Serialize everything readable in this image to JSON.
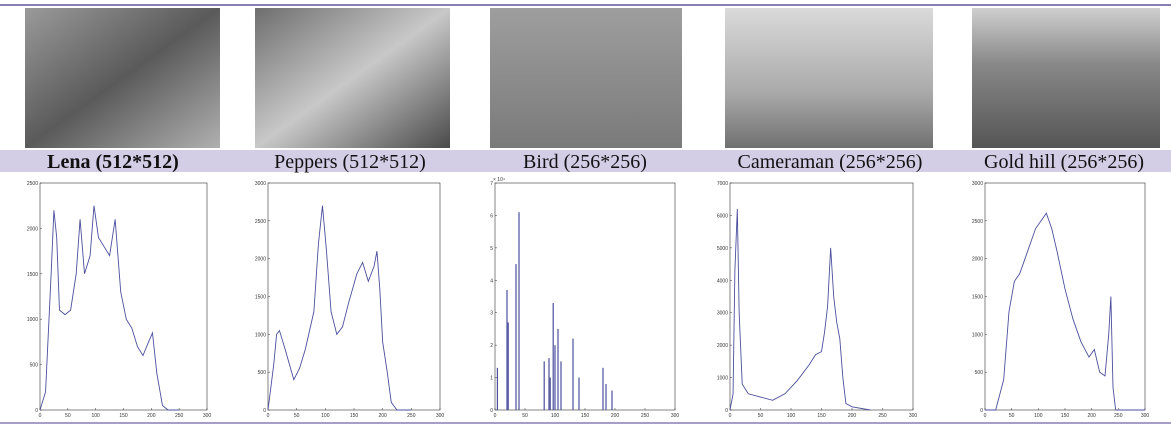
{
  "captions": [
    "Lena (512*512)",
    "Peppers (512*512)",
    "Bird (256*256)",
    "Cameraman (256*256)",
    "Gold hill (256*256)"
  ],
  "chart_data": [
    {
      "type": "line",
      "color": "#4b4f9c",
      "x": [
        0,
        10,
        20,
        25,
        30,
        35,
        45,
        55,
        65,
        72,
        80,
        90,
        97,
        105,
        115,
        125,
        135,
        145,
        155,
        165,
        175,
        185,
        195,
        202,
        210,
        220,
        230,
        250
      ],
      "values": [
        0,
        200,
        1500,
        2200,
        1900,
        1100,
        1050,
        1100,
        1500,
        2100,
        1500,
        1700,
        2250,
        1900,
        1800,
        1700,
        2100,
        1300,
        1000,
        900,
        700,
        600,
        750,
        850,
        400,
        50,
        0,
        0
      ],
      "xlim": [
        0,
        300
      ],
      "ylim": [
        0,
        2500
      ],
      "xticks": [
        0,
        50,
        100,
        150,
        200,
        250,
        300
      ],
      "yticks": [
        0,
        500,
        1000,
        1500,
        2000,
        2500
      ]
    },
    {
      "type": "line",
      "color": "#4b4f9c",
      "x": [
        0,
        10,
        15,
        20,
        30,
        45,
        55,
        65,
        80,
        88,
        95,
        102,
        110,
        120,
        130,
        140,
        155,
        165,
        175,
        185,
        190,
        195,
        200,
        208,
        215,
        225,
        250
      ],
      "values": [
        0,
        600,
        1000,
        1050,
        800,
        400,
        550,
        800,
        1300,
        2200,
        2700,
        2100,
        1300,
        1000,
        1100,
        1400,
        1800,
        1950,
        1700,
        1900,
        2100,
        1600,
        900,
        500,
        100,
        0,
        0
      ],
      "xlim": [
        0,
        300
      ],
      "ylim": [
        0,
        3000
      ],
      "xticks": [
        0,
        50,
        100,
        150,
        200,
        250,
        300
      ],
      "yticks": [
        0,
        500,
        1000,
        1500,
        2000,
        2500,
        3000
      ]
    },
    {
      "type": "bar",
      "color": "#4b4f9c",
      "annotation": "× 10⁴",
      "x": [
        4,
        20,
        22,
        35,
        40,
        82,
        90,
        92,
        97,
        100,
        105,
        110,
        130,
        140,
        180,
        185,
        195
      ],
      "values": [
        13000,
        37000,
        27000,
        45000,
        61000,
        15000,
        16000,
        10000,
        33000,
        20000,
        25000,
        15000,
        22000,
        10000,
        13000,
        8000,
        6000
      ],
      "xlim": [
        0,
        300
      ],
      "ylim": [
        0,
        70000
      ],
      "xticks": [
        0,
        50,
        100,
        150,
        200,
        250,
        300
      ],
      "yticks": [
        0,
        {
          "value": 10000,
          "label": "1"
        },
        {
          "value": 20000,
          "label": "2"
        },
        {
          "value": 30000,
          "label": "3"
        },
        {
          "value": 40000,
          "label": "4"
        },
        {
          "value": 50000,
          "label": "5"
        },
        {
          "value": 60000,
          "label": "6"
        },
        {
          "value": 70000,
          "label": "7"
        }
      ]
    },
    {
      "type": "line",
      "color": "#4b4f9c",
      "x": [
        0,
        5,
        8,
        12,
        15,
        20,
        30,
        50,
        70,
        90,
        110,
        130,
        140,
        150,
        155,
        160,
        165,
        170,
        175,
        180,
        185,
        190,
        200,
        230
      ],
      "values": [
        0,
        500,
        4300,
        6200,
        3000,
        800,
        500,
        400,
        300,
        500,
        900,
        1400,
        1700,
        1800,
        2400,
        3200,
        5000,
        3500,
        2700,
        2200,
        1000,
        200,
        100,
        0
      ],
      "xlim": [
        0,
        300
      ],
      "ylim": [
        0,
        7000
      ],
      "xticks": [
        0,
        50,
        100,
        150,
        200,
        250,
        300
      ],
      "yticks": [
        0,
        1000,
        2000,
        3000,
        4000,
        5000,
        6000,
        7000
      ]
    },
    {
      "type": "line",
      "color": "#4b4f9c",
      "x": [
        0,
        20,
        35,
        45,
        55,
        65,
        75,
        85,
        95,
        105,
        115,
        125,
        135,
        150,
        165,
        180,
        195,
        205,
        215,
        225,
        232,
        236,
        240,
        245,
        300
      ],
      "values": [
        0,
        0,
        400,
        1300,
        1700,
        1800,
        2000,
        2200,
        2400,
        2500,
        2600,
        2400,
        2100,
        1600,
        1200,
        900,
        700,
        800,
        500,
        450,
        1000,
        1500,
        300,
        0,
        0
      ],
      "xlim": [
        0,
        300
      ],
      "ylim": [
        0,
        3000
      ],
      "xticks": [
        0,
        50,
        100,
        150,
        200,
        250,
        300
      ],
      "yticks": [
        0,
        500,
        1000,
        1500,
        2000,
        2500,
        3000
      ]
    }
  ]
}
